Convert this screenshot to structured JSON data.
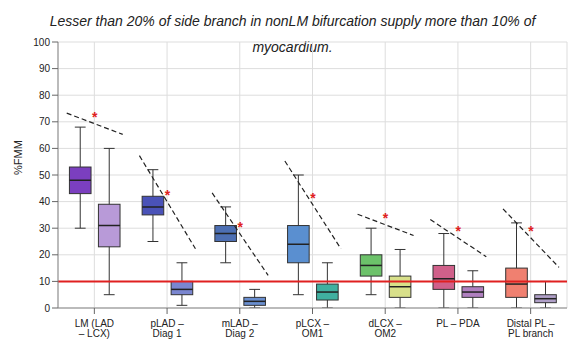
{
  "chart_data": {
    "type": "box",
    "title": "Lesser than 20% of side branch in nonLM bifurcation supply more than 10% of myocardium.",
    "y_label": "%FMM",
    "categories": [
      "LM (LAD – LCX)",
      "pLAD – Diag 1",
      "mLAD – Diag 2",
      "pLCX – OM1",
      "dLCX – OM2",
      "PL – PDA",
      "Distal PL – PL branch"
    ],
    "series": [
      {
        "colors": [
          "#7b3fbf",
          "#4a52b8",
          "#4d6fb3",
          "#5a8fd0",
          "#6cc26a",
          "#d0608a",
          "#f08070"
        ],
        "values": [
          {
            "min": 30,
            "q1": 43,
            "median": 48,
            "q3": 53,
            "max": 68
          },
          {
            "min": 25,
            "q1": 35,
            "median": 38,
            "q3": 42,
            "max": 52
          },
          {
            "min": 17,
            "q1": 25,
            "median": 28,
            "q3": 31,
            "max": 38
          },
          {
            "min": 5,
            "q1": 17,
            "median": 24,
            "q3": 31,
            "max": 50
          },
          {
            "min": 5,
            "q1": 12,
            "median": 16,
            "q3": 20,
            "max": 30
          },
          {
            "min": 0,
            "q1": 7,
            "median": 11,
            "q3": 16,
            "max": 28
          },
          {
            "min": 0,
            "q1": 4,
            "median": 9,
            "q3": 15,
            "max": 32
          }
        ]
      },
      {
        "colors": [
          "#b89ad8",
          "#7a86d0",
          "#6a8fd0",
          "#40b0a0",
          "#d8e08a",
          "#b080c0",
          "#b0a0c8"
        ],
        "values": [
          {
            "min": 5,
            "q1": 23,
            "median": 31,
            "q3": 39,
            "max": 60
          },
          {
            "min": 1,
            "q1": 5,
            "median": 7,
            "q3": 10,
            "max": 17
          },
          {
            "min": 0,
            "q1": 1,
            "median": 2.5,
            "q3": 4,
            "max": 7
          },
          {
            "min": 0,
            "q1": 3,
            "median": 6,
            "q3": 9,
            "max": 17
          },
          {
            "min": 0,
            "q1": 4,
            "median": 8,
            "q3": 12,
            "max": 22
          },
          {
            "min": 0,
            "q1": 4,
            "median": 6,
            "q3": 8,
            "max": 14
          },
          {
            "min": 0,
            "q1": 2,
            "median": 3.5,
            "q3": 5,
            "max": 10
          }
        ]
      }
    ],
    "ylim": [
      0,
      100
    ],
    "yticks": [
      0,
      10,
      20,
      30,
      40,
      50,
      60,
      70,
      80,
      90,
      100
    ],
    "grid": true,
    "reference_line": {
      "y": 10,
      "color": "#e02020"
    },
    "annotations": [
      "*",
      "*",
      "*",
      "*",
      "*",
      "*",
      "*"
    ]
  }
}
